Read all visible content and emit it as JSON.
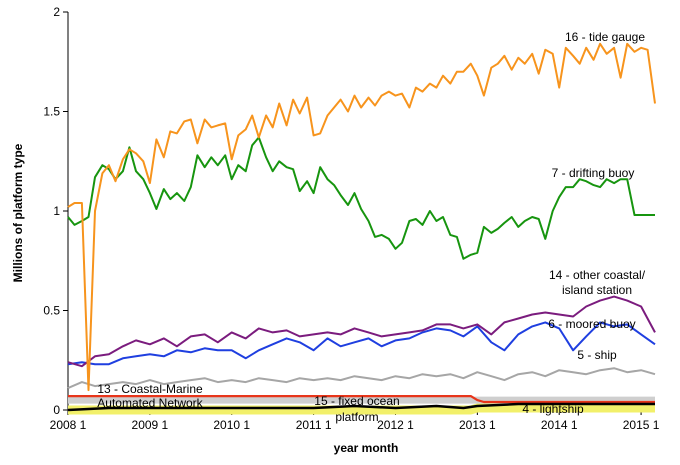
{
  "chart_data": {
    "type": "line",
    "xlabel": "year month",
    "ylabel": "Millions of platform type",
    "ylim": [
      0,
      2
    ],
    "yticks": [
      0,
      0.5,
      1,
      1.5,
      2
    ],
    "ytick_labels": [
      "0",
      "0.5",
      "1",
      "1.5",
      "2"
    ],
    "xticks": [
      2008,
      2009,
      2010,
      2011,
      2012,
      2013,
      2014,
      2015
    ],
    "xtick_labels": [
      "2008 1",
      "2009 1",
      "2010 1",
      "2011 1",
      "2012 1",
      "2013 1",
      "2014 1",
      "2015 1"
    ],
    "xlim": [
      2008,
      2015.17
    ],
    "grid": false,
    "legend": "direct labels",
    "series": [
      {
        "name": "16 - tide gauge",
        "label_lines": [
          "16 - tide gauge"
        ],
        "color": "#F7941D",
        "x": [
          2008.0,
          2008.08,
          2008.17,
          2008.25,
          2008.33,
          2008.42,
          2008.5,
          2008.58,
          2008.67,
          2008.75,
          2008.83,
          2008.92,
          2009.0,
          2009.08,
          2009.17,
          2009.25,
          2009.33,
          2009.42,
          2009.5,
          2009.58,
          2009.67,
          2009.75,
          2009.83,
          2009.92,
          2010.0,
          2010.08,
          2010.17,
          2010.25,
          2010.33,
          2010.42,
          2010.5,
          2010.58,
          2010.67,
          2010.75,
          2010.83,
          2010.92,
          2011.0,
          2011.08,
          2011.17,
          2011.25,
          2011.33,
          2011.42,
          2011.5,
          2011.58,
          2011.67,
          2011.75,
          2011.83,
          2011.92,
          2012.0,
          2012.08,
          2012.17,
          2012.25,
          2012.33,
          2012.42,
          2012.5,
          2012.58,
          2012.67,
          2012.75,
          2012.83,
          2012.92,
          2013.0,
          2013.08,
          2013.17,
          2013.25,
          2013.33,
          2013.42,
          2013.5,
          2013.58,
          2013.67,
          2013.75,
          2013.83,
          2013.92,
          2014.0,
          2014.08,
          2014.17,
          2014.25,
          2014.33,
          2014.42,
          2014.5,
          2014.58,
          2014.67,
          2014.75,
          2014.83,
          2014.92,
          2015.0,
          2015.08,
          2015.17
        ],
        "y": [
          1.02,
          1.04,
          1.04,
          0.1,
          1.0,
          1.19,
          1.23,
          1.15,
          1.26,
          1.31,
          1.29,
          1.25,
          1.14,
          1.36,
          1.27,
          1.4,
          1.39,
          1.45,
          1.46,
          1.34,
          1.46,
          1.42,
          1.43,
          1.44,
          1.26,
          1.38,
          1.41,
          1.48,
          1.37,
          1.48,
          1.42,
          1.54,
          1.43,
          1.56,
          1.49,
          1.57,
          1.38,
          1.39,
          1.48,
          1.52,
          1.56,
          1.5,
          1.58,
          1.52,
          1.57,
          1.53,
          1.58,
          1.6,
          1.58,
          1.59,
          1.52,
          1.62,
          1.6,
          1.64,
          1.62,
          1.68,
          1.64,
          1.7,
          1.7,
          1.74,
          1.68,
          1.58,
          1.72,
          1.74,
          1.78,
          1.71,
          1.77,
          1.74,
          1.79,
          1.69,
          1.81,
          1.79,
          1.62,
          1.82,
          1.78,
          1.74,
          1.82,
          1.76,
          1.84,
          1.79,
          1.82,
          1.67,
          1.84,
          1.8,
          1.82,
          1.81,
          1.54
        ]
      },
      {
        "name": "7 - drifting buoy",
        "label_lines": [
          "7 - drifting buoy"
        ],
        "color": "#17950F",
        "x": [
          2008.0,
          2008.08,
          2008.17,
          2008.25,
          2008.33,
          2008.42,
          2008.5,
          2008.58,
          2008.67,
          2008.75,
          2008.83,
          2008.92,
          2009.0,
          2009.08,
          2009.17,
          2009.25,
          2009.33,
          2009.42,
          2009.5,
          2009.58,
          2009.67,
          2009.75,
          2009.83,
          2009.92,
          2010.0,
          2010.08,
          2010.17,
          2010.25,
          2010.33,
          2010.42,
          2010.5,
          2010.58,
          2010.67,
          2010.75,
          2010.83,
          2010.92,
          2011.0,
          2011.08,
          2011.17,
          2011.25,
          2011.33,
          2011.42,
          2011.5,
          2011.58,
          2011.67,
          2011.75,
          2011.83,
          2011.92,
          2012.0,
          2012.08,
          2012.17,
          2012.25,
          2012.33,
          2012.42,
          2012.5,
          2012.58,
          2012.67,
          2012.75,
          2012.83,
          2012.92,
          2013.0,
          2013.08,
          2013.17,
          2013.25,
          2013.33,
          2013.42,
          2013.5,
          2013.58,
          2013.67,
          2013.75,
          2013.83,
          2013.92,
          2014.0,
          2014.08,
          2014.17,
          2014.25,
          2014.33,
          2014.42,
          2014.5,
          2014.58,
          2014.67,
          2014.75,
          2014.83,
          2014.92,
          2015.0,
          2015.08,
          2015.17
        ],
        "y": [
          0.97,
          0.93,
          0.95,
          0.97,
          1.17,
          1.23,
          1.21,
          1.16,
          1.2,
          1.32,
          1.2,
          1.16,
          1.09,
          1.01,
          1.11,
          1.06,
          1.09,
          1.05,
          1.12,
          1.28,
          1.22,
          1.27,
          1.23,
          1.28,
          1.16,
          1.23,
          1.2,
          1.33,
          1.37,
          1.27,
          1.2,
          1.25,
          1.22,
          1.21,
          1.1,
          1.15,
          1.09,
          1.22,
          1.16,
          1.13,
          1.08,
          1.03,
          1.09,
          1.01,
          0.95,
          0.87,
          0.88,
          0.86,
          0.81,
          0.84,
          0.95,
          0.96,
          0.93,
          1.0,
          0.95,
          0.97,
          0.88,
          0.87,
          0.76,
          0.78,
          0.79,
          0.92,
          0.89,
          0.91,
          0.94,
          0.97,
          0.92,
          0.95,
          0.97,
          0.96,
          0.86,
          1.0,
          1.07,
          1.12,
          1.12,
          1.16,
          1.15,
          1.13,
          1.12,
          1.16,
          1.14,
          1.16,
          1.16,
          0.98,
          0.98,
          0.98,
          0.98
        ]
      },
      {
        "name": "14 - other coastal/ island station",
        "label_lines": [
          "14 - other coastal/",
          "island station"
        ],
        "color": "#7B1C7E",
        "x": [
          2008.0,
          2008.17,
          2008.33,
          2008.5,
          2008.67,
          2008.83,
          2009.0,
          2009.17,
          2009.33,
          2009.5,
          2009.67,
          2009.83,
          2010.0,
          2010.17,
          2010.33,
          2010.5,
          2010.67,
          2010.83,
          2011.0,
          2011.17,
          2011.33,
          2011.5,
          2011.67,
          2011.83,
          2012.0,
          2012.17,
          2012.33,
          2012.5,
          2012.67,
          2012.83,
          2013.0,
          2013.17,
          2013.33,
          2013.5,
          2013.67,
          2013.83,
          2014.0,
          2014.17,
          2014.33,
          2014.5,
          2014.67,
          2014.83,
          2015.0,
          2015.17
        ],
        "y": [
          0.24,
          0.22,
          0.27,
          0.28,
          0.32,
          0.35,
          0.33,
          0.36,
          0.32,
          0.37,
          0.38,
          0.34,
          0.39,
          0.36,
          0.41,
          0.39,
          0.4,
          0.37,
          0.38,
          0.39,
          0.38,
          0.41,
          0.39,
          0.37,
          0.38,
          0.39,
          0.4,
          0.43,
          0.43,
          0.41,
          0.43,
          0.38,
          0.44,
          0.46,
          0.48,
          0.49,
          0.48,
          0.47,
          0.52,
          0.55,
          0.57,
          0.55,
          0.52,
          0.39
        ]
      },
      {
        "name": "6 - moored buoy",
        "label_lines": [
          "6 - moored buoy"
        ],
        "color": "#1F3FE0",
        "x": [
          2008.0,
          2008.17,
          2008.33,
          2008.5,
          2008.67,
          2008.83,
          2009.0,
          2009.17,
          2009.33,
          2009.5,
          2009.67,
          2009.83,
          2010.0,
          2010.17,
          2010.33,
          2010.5,
          2010.67,
          2010.83,
          2011.0,
          2011.17,
          2011.33,
          2011.5,
          2011.67,
          2011.83,
          2012.0,
          2012.17,
          2012.33,
          2012.5,
          2012.67,
          2012.83,
          2013.0,
          2013.17,
          2013.33,
          2013.5,
          2013.67,
          2013.83,
          2014.0,
          2014.17,
          2014.33,
          2014.5,
          2014.67,
          2014.83,
          2015.0,
          2015.17
        ],
        "y": [
          0.23,
          0.24,
          0.23,
          0.23,
          0.26,
          0.27,
          0.28,
          0.27,
          0.3,
          0.29,
          0.31,
          0.3,
          0.3,
          0.26,
          0.3,
          0.33,
          0.36,
          0.34,
          0.3,
          0.36,
          0.32,
          0.34,
          0.36,
          0.32,
          0.35,
          0.36,
          0.39,
          0.41,
          0.4,
          0.37,
          0.42,
          0.34,
          0.3,
          0.38,
          0.42,
          0.44,
          0.41,
          0.3,
          0.37,
          0.44,
          0.42,
          0.43,
          0.38,
          0.33
        ]
      },
      {
        "name": "5 - ship",
        "label_lines": [
          "5 - ship"
        ],
        "color": "#A6A6A6",
        "x": [
          2008.0,
          2008.17,
          2008.33,
          2008.5,
          2008.67,
          2008.83,
          2009.0,
          2009.17,
          2009.33,
          2009.5,
          2009.67,
          2009.83,
          2010.0,
          2010.17,
          2010.33,
          2010.5,
          2010.67,
          2010.83,
          2011.0,
          2011.17,
          2011.33,
          2011.5,
          2011.67,
          2011.83,
          2012.0,
          2012.17,
          2012.33,
          2012.5,
          2012.67,
          2012.83,
          2013.0,
          2013.17,
          2013.33,
          2013.5,
          2013.67,
          2013.83,
          2014.0,
          2014.17,
          2014.33,
          2014.5,
          2014.67,
          2014.83,
          2015.0,
          2015.17
        ],
        "y": [
          0.11,
          0.14,
          0.12,
          0.13,
          0.14,
          0.13,
          0.15,
          0.13,
          0.14,
          0.15,
          0.16,
          0.14,
          0.15,
          0.14,
          0.16,
          0.15,
          0.14,
          0.16,
          0.15,
          0.16,
          0.15,
          0.17,
          0.16,
          0.15,
          0.17,
          0.16,
          0.18,
          0.17,
          0.18,
          0.16,
          0.19,
          0.17,
          0.15,
          0.18,
          0.19,
          0.17,
          0.2,
          0.19,
          0.18,
          0.2,
          0.21,
          0.19,
          0.2,
          0.18
        ]
      },
      {
        "name": "13 - Coastal-Marine Automated Network",
        "label_lines": [
          "13 - Coastal-Marine",
          "Automated Network"
        ],
        "color": "#E8351A",
        "x": [
          2008.0,
          2008.25,
          2008.5,
          2008.75,
          2009.0,
          2009.25,
          2009.5,
          2009.75,
          2010.0,
          2010.25,
          2010.5,
          2010.75,
          2011.0,
          2011.25,
          2011.5,
          2011.75,
          2012.0,
          2012.25,
          2012.5,
          2012.75,
          2012.92,
          2013.0,
          2013.08,
          2013.25,
          2013.5,
          2013.75,
          2014.0,
          2014.25,
          2014.5,
          2014.75,
          2015.0,
          2015.17
        ],
        "y": [
          0.07,
          0.07,
          0.07,
          0.07,
          0.07,
          0.07,
          0.07,
          0.07,
          0.07,
          0.07,
          0.07,
          0.07,
          0.07,
          0.07,
          0.07,
          0.07,
          0.07,
          0.07,
          0.07,
          0.07,
          0.07,
          0.05,
          0.04,
          0.04,
          0.04,
          0.04,
          0.04,
          0.04,
          0.04,
          0.04,
          0.04,
          0.04
        ]
      },
      {
        "name": "15 - fixed ocean platform",
        "label_lines": [
          "15 - fixed ocean",
          "platform"
        ],
        "color": "#CFCFCF",
        "x": [
          2008.0,
          2008.5,
          2009.0,
          2009.5,
          2010.0,
          2010.5,
          2011.0,
          2011.5,
          2012.0,
          2012.33,
          2012.5,
          2012.67,
          2013.0,
          2013.5,
          2014.0,
          2014.5,
          2015.0,
          2015.17
        ],
        "y": [
          0.05,
          0.05,
          0.05,
          0.05,
          0.05,
          0.05,
          0.05,
          0.05,
          0.05,
          0.05,
          0.05,
          0.05,
          0.05,
          0.05,
          0.05,
          0.05,
          0.05,
          0.05
        ]
      },
      {
        "name": "4 - lightship",
        "label_lines": [
          "4 - lightship"
        ],
        "color": "#F2F06A",
        "x": [
          2008.0,
          2008.5,
          2009.0,
          2009.5,
          2010.0,
          2010.5,
          2011.0,
          2011.5,
          2012.0,
          2012.5,
          2012.92,
          2013.0,
          2013.5,
          2014.0,
          2014.5,
          2015.0,
          2015.17
        ],
        "y": [
          0.0,
          0.0,
          0.0,
          0.0,
          0.0,
          0.0,
          0.0,
          0.0,
          0.0,
          0.0,
          0.0,
          0.01,
          0.01,
          0.01,
          0.01,
          0.01,
          0.01
        ]
      },
      {
        "name": "black baseline series",
        "label_lines": [],
        "color": "#000000",
        "x": [
          2008.0,
          2008.5,
          2009.0,
          2009.5,
          2010.0,
          2010.5,
          2011.0,
          2011.5,
          2012.0,
          2012.5,
          2012.83,
          2013.0,
          2013.5,
          2014.0,
          2014.5,
          2015.0,
          2015.17
        ],
        "y": [
          0.0,
          0.01,
          0.01,
          0.01,
          0.01,
          0.01,
          0.01,
          0.02,
          0.01,
          0.02,
          0.01,
          0.02,
          0.03,
          0.03,
          0.03,
          0.03,
          0.03
        ]
      }
    ]
  }
}
